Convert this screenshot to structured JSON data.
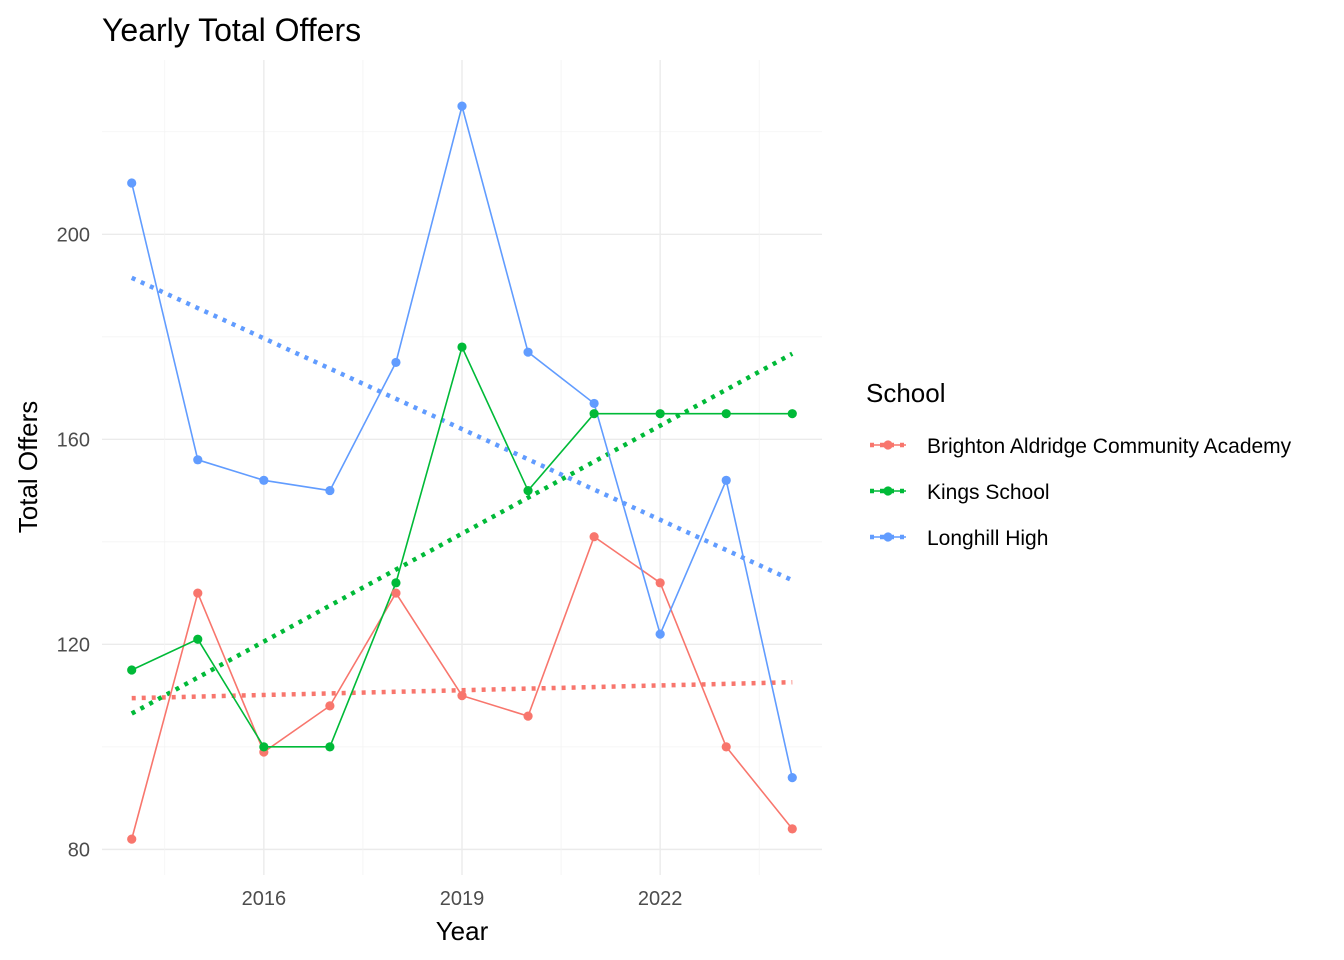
{
  "chart_data": {
    "type": "line",
    "title": "Yearly Total Offers",
    "xlabel": "Year",
    "ylabel": "Total Offers",
    "x": [
      2014,
      2015,
      2016,
      2017,
      2018,
      2019,
      2020,
      2021,
      2022,
      2023,
      2024
    ],
    "xlim": [
      2013.55,
      2024.45
    ],
    "ylim": [
      75,
      234
    ],
    "x_ticks": [
      2016,
      2019,
      2022
    ],
    "x_tick_labels": [
      "2016",
      "2019",
      "2022"
    ],
    "y_ticks": [
      80,
      120,
      160,
      200
    ],
    "y_tick_labels": [
      "80",
      "120",
      "160",
      "200"
    ],
    "grid": true,
    "legend": {
      "title": "School",
      "placement": "right"
    },
    "series": [
      {
        "name": "Brighton Aldridge Community Academy",
        "color": "#F8766D",
        "values": [
          82,
          130,
          99,
          108,
          130,
          110,
          106,
          141,
          132,
          100,
          84
        ],
        "trend": [
          109.5,
          112.6
        ]
      },
      {
        "name": "Kings School",
        "color": "#00BA38",
        "values": [
          115,
          121,
          100,
          100,
          132,
          178,
          150,
          165,
          165,
          165,
          165
        ],
        "trend": [
          106.5,
          176.7
        ]
      },
      {
        "name": "Longhill High",
        "color": "#619CFF",
        "values": [
          210,
          156,
          152,
          150,
          175,
          225,
          177,
          167,
          122,
          152,
          94
        ],
        "trend": [
          191.5,
          132.5
        ]
      }
    ]
  }
}
